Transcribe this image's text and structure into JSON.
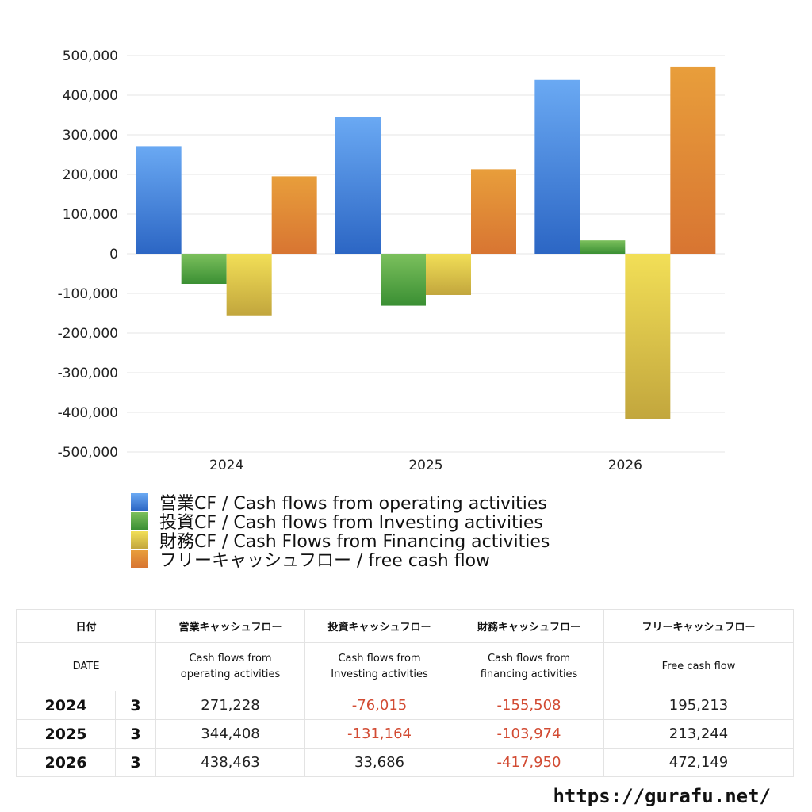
{
  "chart_data": {
    "type": "bar",
    "categories": [
      "2024",
      "2025",
      "2026"
    ],
    "ylim": [
      -500000,
      500000
    ],
    "yticks": [
      "500,000",
      "400,000",
      "300,000",
      "200,000",
      "100,000",
      "0",
      "-100,000",
      "-200,000",
      "-300,000",
      "-400,000",
      "-500,000"
    ],
    "ytick_values": [
      500000,
      400000,
      300000,
      200000,
      100000,
      0,
      -100000,
      -200000,
      -300000,
      -400000,
      -500000
    ],
    "grid": true,
    "legend_position": "bottom",
    "series": [
      {
        "name": "営業CF / Cash flows from operating activities",
        "values": [
          271228,
          344408,
          438463
        ],
        "color_top": "#6aa9f3",
        "color_bottom": "#2c66c4"
      },
      {
        "name": "投資CF / Cash flows from Investing activities",
        "values": [
          -76015,
          -131164,
          33686
        ],
        "color_top": "#7cc05d",
        "color_bottom": "#3a8f33"
      },
      {
        "name": "財務CF / Cash Flows from Financing activities",
        "values": [
          -155508,
          -103974,
          -417950
        ],
        "color_top": "#f2df57",
        "color_bottom": "#c2a63d"
      },
      {
        "name": "フリーキャッシュフロー / free cash flow",
        "values": [
          195213,
          213244,
          472149
        ],
        "color_top": "#e89e3b",
        "color_bottom": "#d87532"
      }
    ]
  },
  "table": {
    "header_ja": {
      "date": "日付",
      "op": "営業キャッシュフロー",
      "inv": "投資キャッシュフロー",
      "fin": "財務キャッシュフロー",
      "free": "フリーキャッシュフロー"
    },
    "header_en": {
      "date": "DATE",
      "op": "Cash flows from operating activities",
      "inv": "Cash flows from Investing activities",
      "fin": "Cash flows from financing activities",
      "free": "Free cash flow"
    },
    "rows": [
      {
        "year": "2024",
        "month": "3",
        "op": "271,228",
        "inv": "-76,015",
        "fin": "-155,508",
        "free": "195,213"
      },
      {
        "year": "2025",
        "month": "3",
        "op": "344,408",
        "inv": "-131,164",
        "fin": "-103,974",
        "free": "213,244"
      },
      {
        "year": "2026",
        "month": "3",
        "op": "438,463",
        "inv": "33,686",
        "fin": "-417,950",
        "free": "472,149"
      }
    ],
    "negative_color": "#d24b33"
  },
  "footer": {
    "url": "https://gurafu.net/"
  }
}
